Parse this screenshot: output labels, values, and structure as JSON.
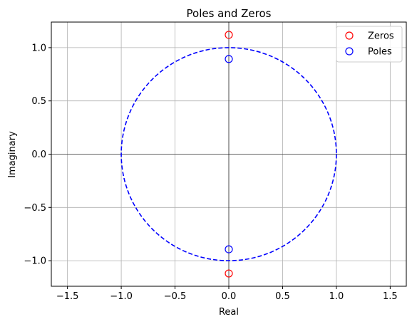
{
  "chart_data": {
    "type": "scatter",
    "title": "Poles and Zeros",
    "xlabel": "Real",
    "ylabel": "Imaginary",
    "xlim": [
      -1.65,
      1.65
    ],
    "ylim": [
      -1.24,
      1.24
    ],
    "x_ticks": [
      -1.5,
      -1.0,
      -0.5,
      0.0,
      0.5,
      1.0,
      1.5
    ],
    "x_tick_labels": [
      "−1.5",
      "−1.0",
      "−0.5",
      "0.0",
      "0.5",
      "1.0",
      "1.5"
    ],
    "y_ticks": [
      1.0,
      0.5,
      0.0,
      -0.5,
      -1.0
    ],
    "y_tick_labels": [
      "1.0",
      "0.5",
      "0.0",
      "−0.5",
      "−1.0"
    ],
    "grid": true,
    "legend_position": "top-right",
    "unit_circle": {
      "radius": 1.0,
      "color": "#0000ff",
      "style": "dashed"
    },
    "series": [
      {
        "name": "Zeros",
        "color": "#ff0000",
        "marker": "hollow-circle",
        "points": [
          {
            "x": 0.0,
            "y": 1.12
          },
          {
            "x": 0.0,
            "y": -1.12
          }
        ]
      },
      {
        "name": "Poles",
        "color": "#0000ff",
        "marker": "hollow-circle",
        "points": [
          {
            "x": 0.0,
            "y": 0.893
          },
          {
            "x": 0.0,
            "y": -0.893
          }
        ]
      }
    ]
  }
}
